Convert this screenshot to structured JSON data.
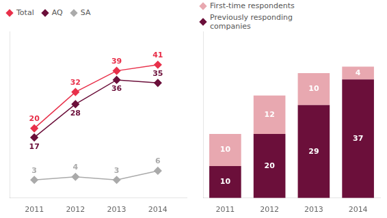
{
  "chart_data": [
    {
      "type": "line",
      "x": [
        2011,
        2012,
        2013,
        2014
      ],
      "xlim": [
        2010.4,
        2014.7
      ],
      "xticks": [
        2011,
        2012,
        2013,
        2014
      ],
      "ylim": [
        -3,
        52
      ],
      "tick_labels": "x",
      "grid": false,
      "legend": "upper left",
      "data_labels": true,
      "marker": "diamond",
      "series": [
        {
          "name": "Total",
          "color": "#E8304A",
          "values": [
            20,
            32,
            39,
            41
          ]
        },
        {
          "name": "AQ",
          "color": "#6B0F3A",
          "values": [
            17,
            28,
            36,
            35
          ]
        },
        {
          "name": "SA",
          "color": "#AAAAAA",
          "values": [
            3,
            4,
            3,
            6
          ]
        }
      ]
    },
    {
      "type": "bar",
      "stacked": true,
      "categories": [
        "2011",
        "2012",
        "2013",
        "2014"
      ],
      "ylim": [
        0,
        52
      ],
      "tick_labels": "x",
      "grid": false,
      "legend": "upper left",
      "data_labels": true,
      "series": [
        {
          "name": "Previously responding\ncompanies",
          "color": "#6B0F3A",
          "values": [
            10,
            20,
            29,
            37
          ]
        },
        {
          "name": "First-time respondents",
          "color": "#E8A8B0",
          "values": [
            10,
            12,
            10,
            4
          ]
        }
      ]
    }
  ]
}
